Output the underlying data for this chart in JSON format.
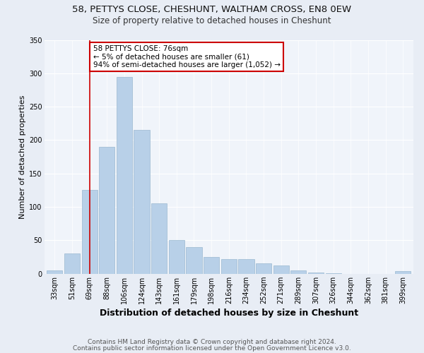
{
  "title1": "58, PETTYS CLOSE, CHESHUNT, WALTHAM CROSS, EN8 0EW",
  "title2": "Size of property relative to detached houses in Cheshunt",
  "xlabel": "Distribution of detached houses by size in Cheshunt",
  "ylabel": "Number of detached properties",
  "categories": [
    "33sqm",
    "51sqm",
    "69sqm",
    "88sqm",
    "106sqm",
    "124sqm",
    "143sqm",
    "161sqm",
    "179sqm",
    "198sqm",
    "216sqm",
    "234sqm",
    "252sqm",
    "271sqm",
    "289sqm",
    "307sqm",
    "326sqm",
    "344sqm",
    "362sqm",
    "381sqm",
    "399sqm"
  ],
  "values": [
    5,
    30,
    125,
    190,
    295,
    215,
    105,
    50,
    40,
    25,
    22,
    22,
    16,
    12,
    5,
    2,
    1,
    0,
    0,
    0,
    4
  ],
  "bar_color": "#b8d0e8",
  "bar_edge_color": "#9ab8d0",
  "vline_x_index": 2,
  "annotation_text": "58 PETTYS CLOSE: 76sqm\n← 5% of detached houses are smaller (61)\n94% of semi-detached houses are larger (1,052) →",
  "vline_color": "#cc0000",
  "annotation_box_color": "#ffffff",
  "annotation_box_edge": "#cc0000",
  "footer1": "Contains HM Land Registry data © Crown copyright and database right 2024.",
  "footer2": "Contains public sector information licensed under the Open Government Licence v3.0.",
  "ylim": [
    0,
    350
  ],
  "yticks": [
    0,
    50,
    100,
    150,
    200,
    250,
    300,
    350
  ],
  "bg_color": "#e8edf5",
  "plot_bg_color": "#f0f4fa",
  "title1_fontsize": 9.5,
  "title2_fontsize": 8.5,
  "xlabel_fontsize": 9,
  "ylabel_fontsize": 8,
  "tick_fontsize": 7,
  "footer_fontsize": 6.5,
  "annotation_fontsize": 7.5
}
